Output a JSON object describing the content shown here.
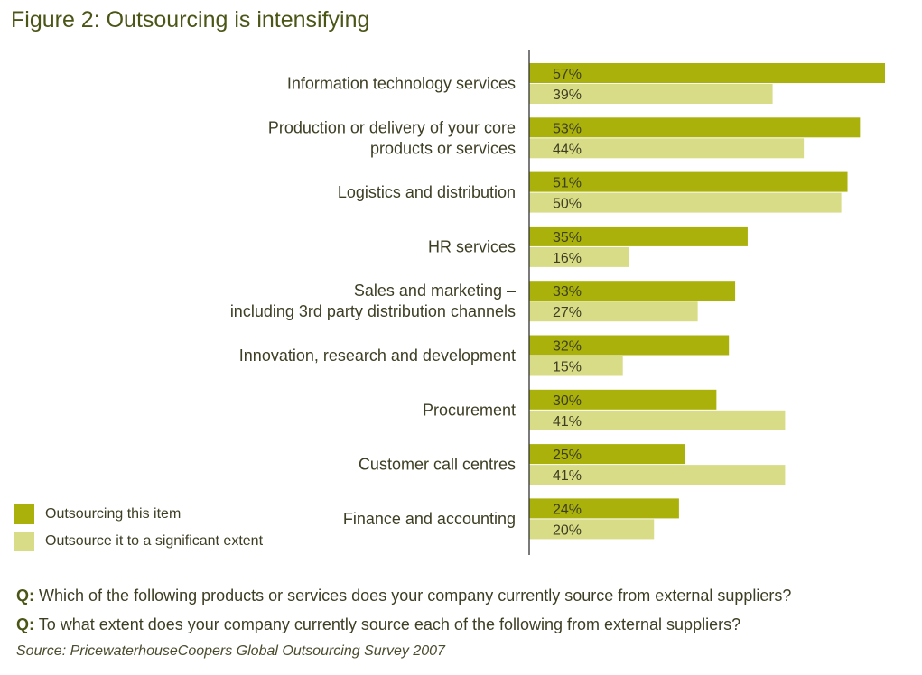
{
  "title": "Figure 2: Outsourcing is intensifying",
  "legend": [
    {
      "label": "Outsourcing this item",
      "color": "#a9b10a"
    },
    {
      "label": "Outsource it to a significant extent",
      "color": "#d8dc86"
    }
  ],
  "questions": [
    {
      "prefix": "Q:",
      "text": "Which of the following products or services does your company currently source from external suppliers?"
    },
    {
      "prefix": "Q:",
      "text": "To what extent does your company currently source each of the following from external suppliers?"
    }
  ],
  "source": "Source: PricewaterhouseCoopers Global Outsourcing Survey 2007",
  "chart_data": {
    "type": "bar",
    "orientation": "horizontal",
    "title": "Figure 2: Outsourcing is intensifying",
    "categories": [
      [
        "Information technology services"
      ],
      [
        "Production or delivery of your core",
        "products or services"
      ],
      [
        "Logistics and distribution"
      ],
      [
        "HR services"
      ],
      [
        "Sales and marketing –",
        "including 3rd party distribution channels"
      ],
      [
        "Innovation, research and development"
      ],
      [
        "Procurement"
      ],
      [
        "Customer call centres"
      ],
      [
        "Finance and accounting"
      ]
    ],
    "series": [
      {
        "name": "Outsourcing this item",
        "color": "#a9b10a",
        "values": [
          57,
          53,
          51,
          35,
          33,
          32,
          30,
          25,
          24
        ]
      },
      {
        "name": "Outsource it to a significant extent",
        "color": "#d8dc86",
        "values": [
          39,
          44,
          50,
          16,
          27,
          15,
          41,
          41,
          20
        ]
      }
    ],
    "value_suffix": "%",
    "xlim": [
      0,
      57
    ],
    "grid": false,
    "legend_position": "bottom-left"
  }
}
